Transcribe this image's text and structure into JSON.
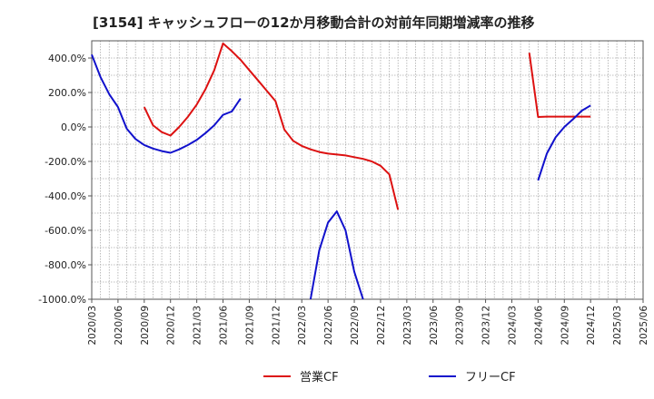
{
  "chart_data": {
    "type": "line",
    "title": "[3154]  キャッシュフローの12か月移動合計の対前年同期増減率の推移",
    "xlabel": "",
    "ylabel": "",
    "ylim": [
      -1000,
      500
    ],
    "yticks": [
      400,
      200,
      0,
      -200,
      -400,
      -600,
      -800,
      -1000
    ],
    "ytick_labels": [
      "400.0%",
      "200.0%",
      "0.0%",
      "-200.0%",
      "-400.0%",
      "-600.0%",
      "-800.0%",
      "-1000.0%"
    ],
    "xlim": [
      "2020/03",
      "2025/06"
    ],
    "xtick_labels": [
      "2020/03",
      "2020/06",
      "2020/09",
      "2020/12",
      "2021/03",
      "2021/06",
      "2021/09",
      "2021/12",
      "2022/03",
      "2022/06",
      "2022/09",
      "2022/12",
      "2023/03",
      "2023/06",
      "2023/09",
      "2023/12",
      "2024/03",
      "2024/06",
      "2024/09",
      "2024/12",
      "2025/03",
      "2025/06"
    ],
    "grid": true,
    "legend_position": "bottom",
    "series": [
      {
        "name": "営業CF",
        "color": "#dd1111",
        "points": [
          [
            "2020/09",
            115
          ],
          [
            "2020/10",
            10
          ],
          [
            "2020/11",
            -30
          ],
          [
            "2020/12",
            -50
          ],
          [
            "2021/01",
            0
          ],
          [
            "2021/02",
            60
          ],
          [
            "2021/03",
            130
          ],
          [
            "2021/04",
            220
          ],
          [
            "2021/05",
            330
          ],
          [
            "2021/06",
            485
          ],
          [
            "2021/07",
            440
          ],
          [
            "2021/08",
            390
          ],
          [
            "2021/09",
            330
          ],
          [
            "2021/10",
            270
          ],
          [
            "2021/11",
            210
          ],
          [
            "2021/12",
            150
          ],
          [
            "2022/01",
            -15
          ],
          [
            "2022/02",
            -80
          ],
          [
            "2022/03",
            -110
          ],
          [
            "2022/04",
            -130
          ],
          [
            "2022/05",
            -145
          ],
          [
            "2022/06",
            -155
          ],
          [
            "2022/07",
            -160
          ],
          [
            "2022/08",
            -165
          ],
          [
            "2022/09",
            -175
          ],
          [
            "2022/10",
            -185
          ],
          [
            "2022/11",
            -200
          ],
          [
            "2022/12",
            -225
          ],
          [
            "2023/01",
            -275
          ],
          [
            "2023/02",
            -480
          ],
          null,
          [
            "2024/05",
            430
          ],
          [
            "2024/06",
            58
          ],
          [
            "2024/07",
            60
          ],
          [
            "2024/08",
            60
          ],
          [
            "2024/09",
            60
          ],
          [
            "2024/10",
            60
          ],
          [
            "2024/11",
            60
          ],
          [
            "2024/12",
            60
          ]
        ]
      },
      {
        "name": "フリーCF",
        "color": "#1111cc",
        "points": [
          [
            "2020/03",
            420
          ],
          [
            "2020/04",
            290
          ],
          [
            "2020/05",
            190
          ],
          [
            "2020/06",
            115
          ],
          [
            "2020/07",
            -10
          ],
          [
            "2020/08",
            -70
          ],
          [
            "2020/09",
            -105
          ],
          [
            "2020/10",
            -125
          ],
          [
            "2020/11",
            -140
          ],
          [
            "2020/12",
            -150
          ],
          [
            "2021/01",
            -130
          ],
          [
            "2021/02",
            -105
          ],
          [
            "2021/03",
            -75
          ],
          [
            "2021/04",
            -35
          ],
          [
            "2021/05",
            10
          ],
          [
            "2021/06",
            70
          ],
          [
            "2021/07",
            90
          ],
          [
            "2021/08",
            165
          ],
          null,
          [
            "2022/04",
            -1000
          ],
          [
            "2022/05",
            -715
          ],
          [
            "2022/06",
            -555
          ],
          [
            "2022/07",
            -490
          ],
          [
            "2022/08",
            -600
          ],
          [
            "2022/09",
            -840
          ],
          [
            "2022/10",
            -1000
          ],
          null,
          [
            "2024/06",
            -310
          ],
          [
            "2024/07",
            -155
          ],
          [
            "2024/08",
            -60
          ],
          [
            "2024/09",
            0
          ],
          [
            "2024/10",
            45
          ],
          [
            "2024/11",
            95
          ],
          [
            "2024/12",
            125
          ]
        ]
      }
    ]
  }
}
